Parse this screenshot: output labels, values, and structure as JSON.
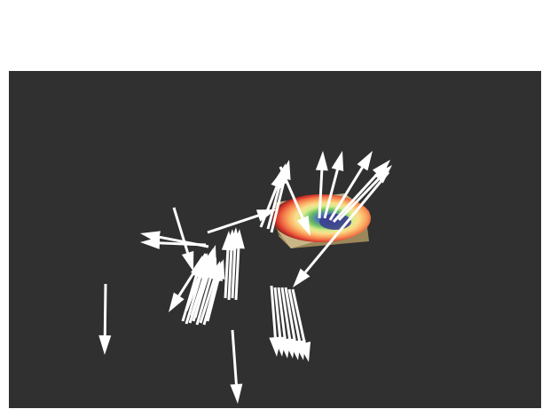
{
  "scene": {
    "background": "#303030",
    "arrow_color": "#ffffff",
    "slice_palette": [
      "#7f1d12",
      "#d73027",
      "#f46d43",
      "#fdae61",
      "#fee08b",
      "#d9ef8b",
      "#66bd63",
      "#1a9850",
      "#4575b4",
      "#3a3f8f"
    ],
    "block_colors": {
      "top": "#cdbb8e",
      "front": "#a8915f",
      "side": "#8f7a4e"
    },
    "block_center_mark": "center-marker"
  }
}
